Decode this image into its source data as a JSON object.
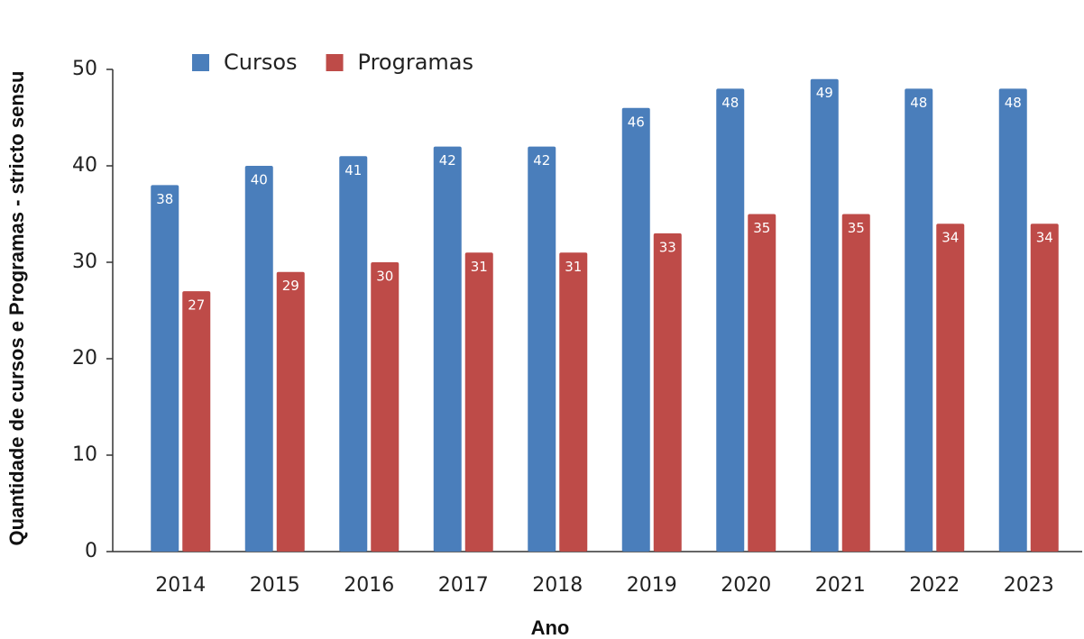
{
  "chart_data": {
    "type": "bar",
    "xlabel": "Ano",
    "ylabel": "Quantidade de cursos e Programas - stricto sensu",
    "categories": [
      "2014",
      "2015",
      "2016",
      "2017",
      "2018",
      "2019",
      "2020",
      "2021",
      "2022",
      "2023"
    ],
    "series": [
      {
        "name": "Cursos",
        "color": "#4a7ebb",
        "values": [
          38,
          40,
          41,
          42,
          42,
          46,
          48,
          49,
          48,
          48
        ]
      },
      {
        "name": "Programas",
        "color": "#be4b48",
        "values": [
          27,
          29,
          30,
          31,
          31,
          33,
          35,
          35,
          34,
          34
        ]
      }
    ],
    "ylim": [
      0,
      50
    ],
    "yticks": [
      0,
      10,
      20,
      30,
      40,
      50
    ],
    "grid": false,
    "legend": "top-left"
  }
}
